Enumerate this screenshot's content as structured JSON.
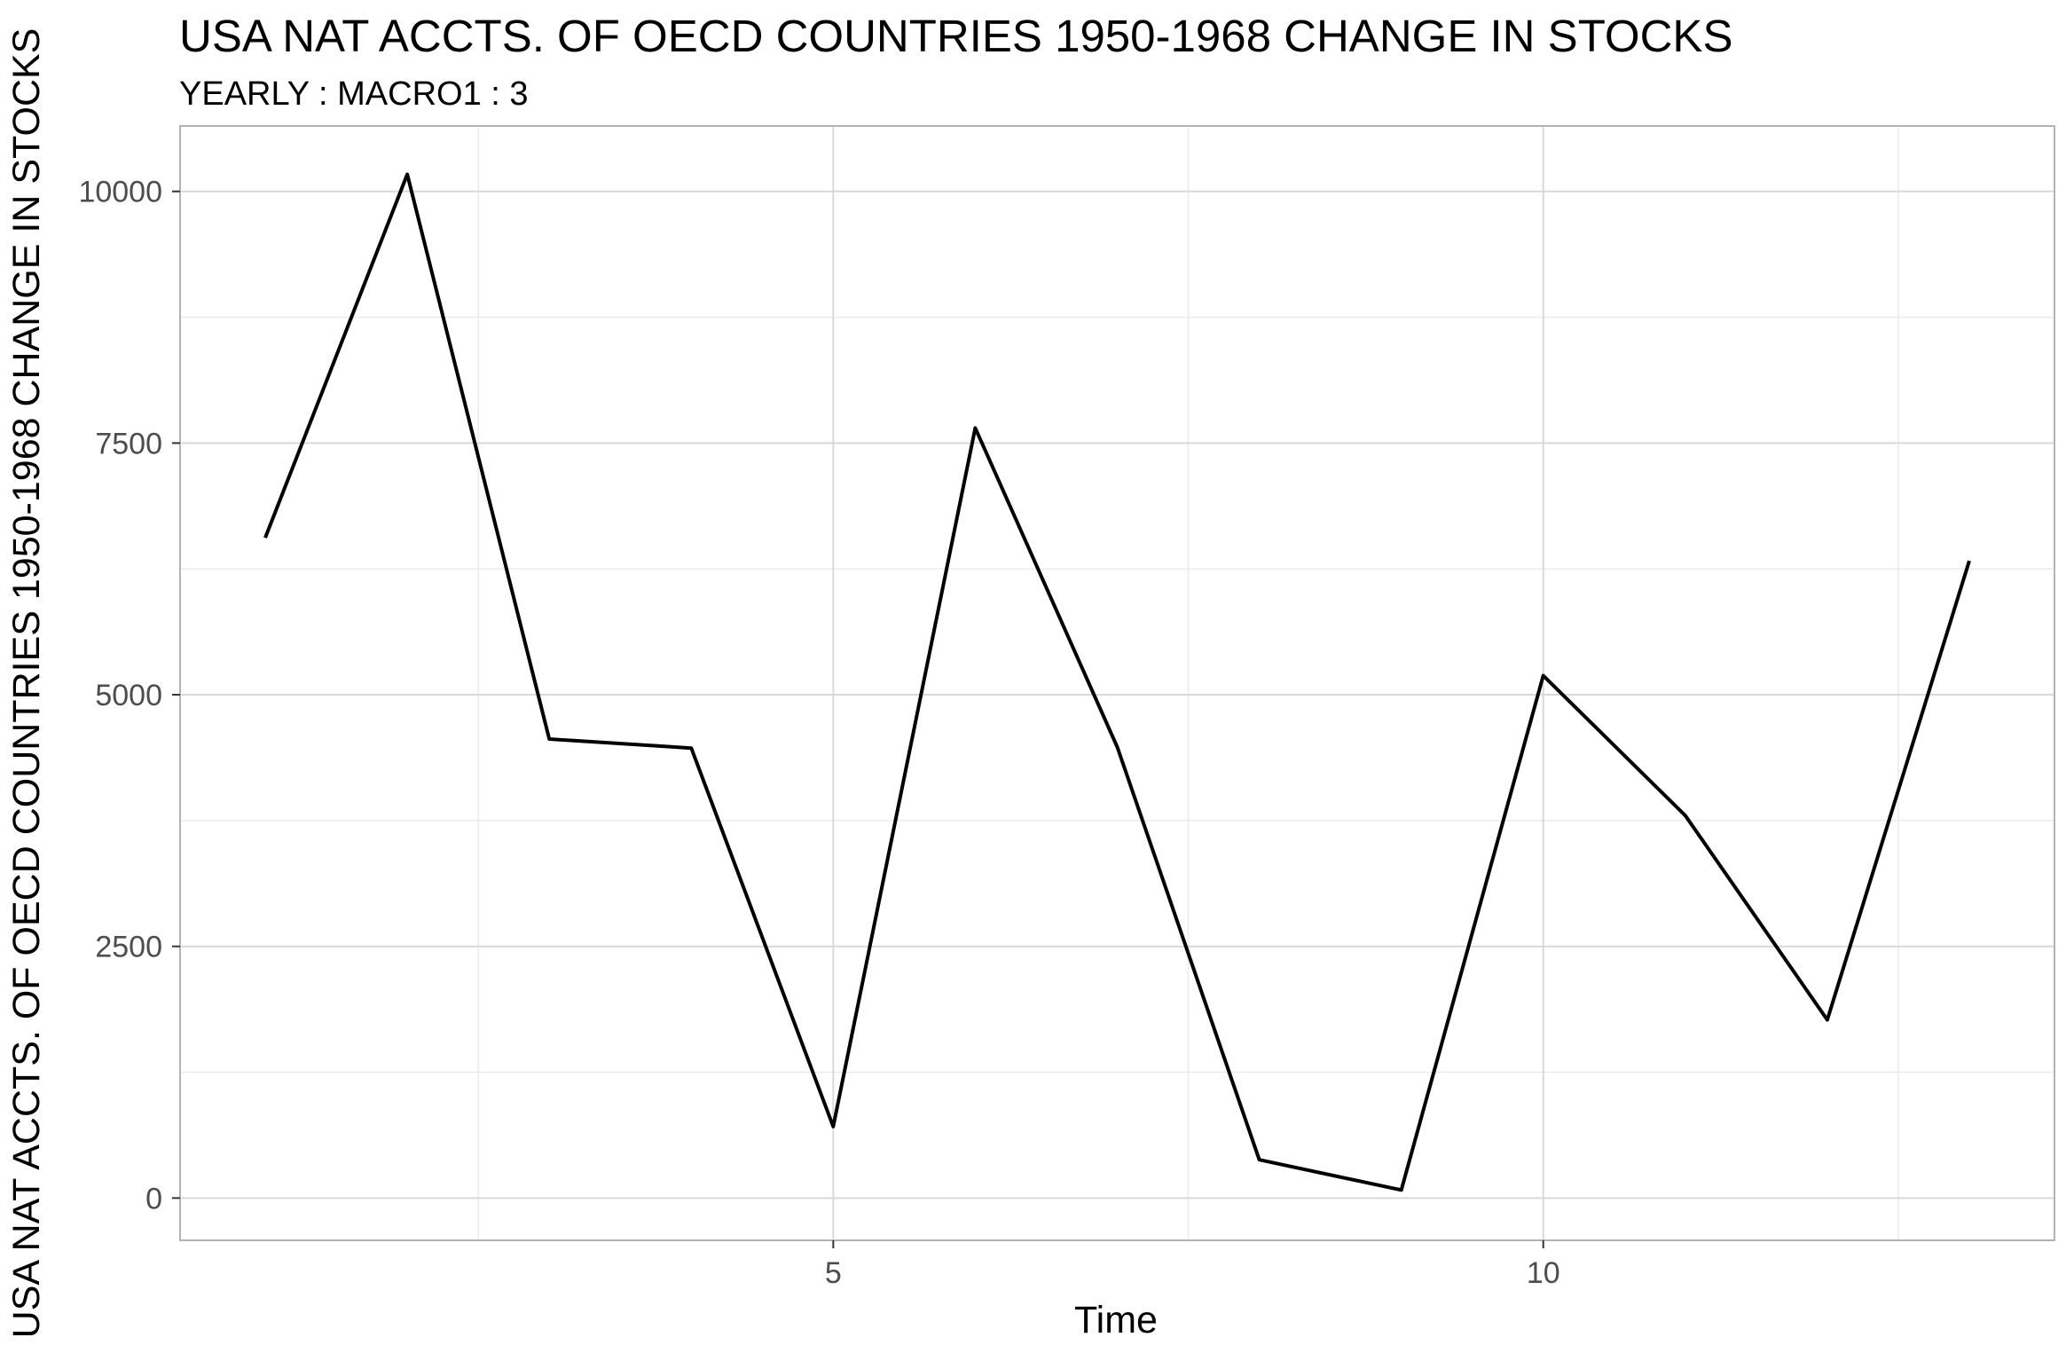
{
  "chart_data": {
    "type": "line",
    "title": "USA NAT ACCTS. OF OECD COUNTRIES 1950-1968 CHANGE IN STOCKS",
    "subtitle": "YEARLY : MACRO1 : 3",
    "xlabel": "Time",
    "ylabel": "USA NAT ACCTS. OF OECD COUNTRIES 1950-1968 CHANGE IN STOCKS",
    "x": [
      1,
      2,
      3,
      4,
      5,
      6,
      7,
      8,
      9,
      10,
      11,
      12,
      13
    ],
    "series": [
      {
        "values": [
          6560,
          10170,
          4560,
          4470,
          710,
          7650,
          4480,
          380,
          80,
          5190,
          3800,
          1770,
          6330
        ]
      }
    ],
    "xlim": [
      0.4,
      13.6
    ],
    "ylim": [
      -420,
      10650
    ],
    "x_ticks": [
      "5",
      "10"
    ],
    "y_ticks": [
      "0",
      "2500",
      "5000",
      "7500",
      "10000"
    ],
    "grid": true,
    "line_color": "#000000"
  }
}
